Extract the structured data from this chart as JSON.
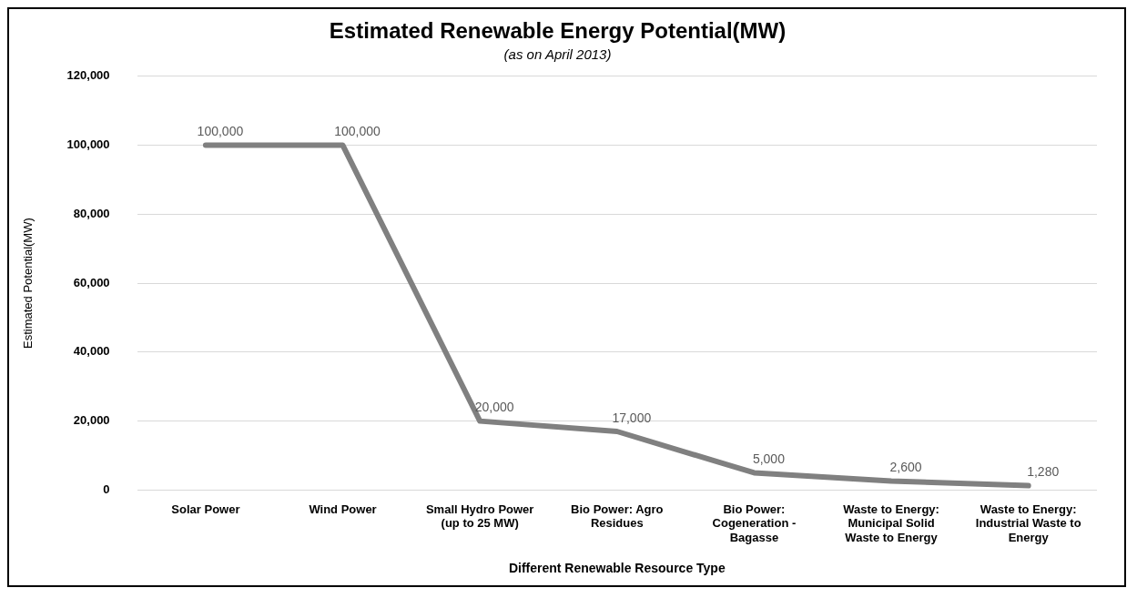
{
  "chart_data": {
    "type": "line",
    "title": "Estimated Renewable Energy Potential(MW)",
    "subtitle": "(as on April 2013)",
    "xlabel": "Different Renewable Resource Type",
    "ylabel": "Estimated Potential(MW)",
    "categories": [
      "Solar Power",
      "Wind Power",
      "Small Hydro Power (up to 25 MW)",
      "Bio Power: Agro Residues",
      "Bio Power: Cogeneration - Bagasse",
      "Waste to Energy: Municipal Solid Waste to Energy",
      "Waste to Energy: Industrial Waste to Energy"
    ],
    "series": [
      {
        "color": "#808080",
        "values": [
          100000,
          100000,
          20000,
          17000,
          5000,
          2600,
          1280
        ],
        "value_labels": [
          "100,000",
          "100,000",
          "20,000",
          "17,000",
          "5,000",
          "2,600",
          "1,280"
        ]
      }
    ],
    "ylim": [
      0,
      120000
    ],
    "yticks": [
      {
        "value": 0,
        "label": "0"
      },
      {
        "value": 20000,
        "label": "20,000"
      },
      {
        "value": 40000,
        "label": "40,000"
      },
      {
        "value": 60000,
        "label": "60,000"
      },
      {
        "value": 80000,
        "label": "80,000"
      },
      {
        "value": 100000,
        "label": "100,000"
      },
      {
        "value": 120000,
        "label": "120,000"
      }
    ],
    "grid": "y",
    "legend": false,
    "marker": "none",
    "line_style": "solid"
  }
}
